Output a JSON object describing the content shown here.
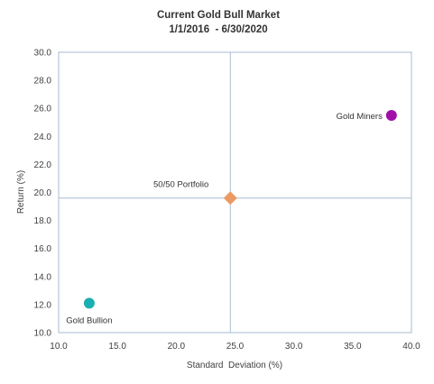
{
  "chart_data": {
    "type": "scatter",
    "title": "Current Gold Bull Market",
    "subtitle": "1/1/2016  - 6/30/2020",
    "xlabel": "Standard  Deviation (%)",
    "ylabel": "Return (%)",
    "xlim": [
      10.0,
      40.0
    ],
    "ylim": [
      10.0,
      30.0
    ],
    "x_ticks": [
      "10.0",
      "15.0",
      "20.0",
      "25.0",
      "30.0",
      "35.0",
      "40.0"
    ],
    "y_ticks": [
      "10.0",
      "12.0",
      "14.0",
      "16.0",
      "18.0",
      "20.0",
      "22.0",
      "24.0",
      "26.0",
      "28.0",
      "30.0"
    ],
    "grid": false,
    "crosshair": {
      "x": 24.6,
      "y": 19.6
    },
    "points": [
      {
        "label": "Gold Bullion",
        "x": 12.6,
        "y": 12.1,
        "color": "#1aafb1",
        "marker": "circle"
      },
      {
        "label": "50/50 Portfolio",
        "x": 24.6,
        "y": 19.6,
        "color": "#eb9a62",
        "marker": "diamond"
      },
      {
        "label": "Gold Miners",
        "x": 38.3,
        "y": 25.5,
        "color": "#a10fa8",
        "marker": "circle"
      }
    ],
    "axis_color": "#a6bcd2"
  }
}
